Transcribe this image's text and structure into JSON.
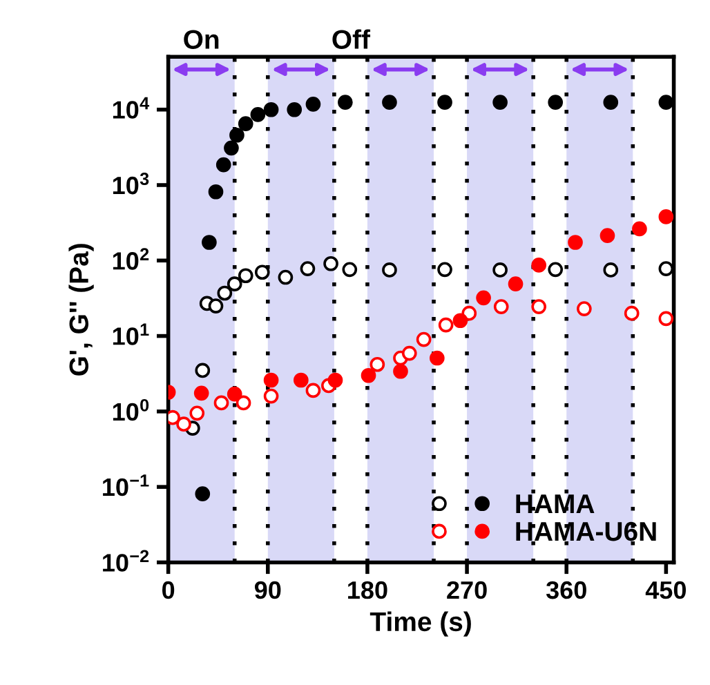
{
  "chart_data": {
    "type": "scatter",
    "xlabel": "Time (s)",
    "ylabel": "G', G'' (Pa)",
    "xlim": [
      0,
      457
    ],
    "xticks": [
      0,
      90,
      180,
      270,
      360,
      450
    ],
    "ylim": [
      0.01,
      50000
    ],
    "log": "y",
    "yticks": [
      {
        "value": 0.01,
        "label": "10$^{−2}$"
      },
      {
        "value": 0.1,
        "label": "10$^{−1}$"
      },
      {
        "value": 1,
        "label": "10$^{0}$"
      },
      {
        "value": 10,
        "label": "10$^{1}$"
      },
      {
        "value": 100,
        "label": "10$^{2}$"
      },
      {
        "value": 1000,
        "label": "10$^{3}$"
      },
      {
        "value": 10000,
        "label": "10$^{4}$"
      }
    ],
    "grid": false,
    "legend": "bottom right",
    "marker": "circle",
    "annotations": [
      "On",
      "Off"
    ],
    "bands": [
      {
        "axis": "x",
        "from": 0,
        "to": 60,
        "color": "#d9d9f7"
      },
      {
        "axis": "x",
        "from": 90,
        "to": 150,
        "color": "#d9d9f7"
      },
      {
        "axis": "x",
        "from": 180,
        "to": 240,
        "color": "#d9d9f7"
      },
      {
        "axis": "x",
        "from": 270,
        "to": 330,
        "color": "#d9d9f7"
      },
      {
        "axis": "x",
        "from": 360,
        "to": 420,
        "color": "#d9d9f7"
      }
    ],
    "ref_lines": [
      {
        "axis": "x",
        "value": 60,
        "color": "#000000",
        "line_style": "dotted"
      },
      {
        "axis": "x",
        "value": 90,
        "color": "#000000",
        "line_style": "dotted"
      },
      {
        "axis": "x",
        "value": 150,
        "color": "#000000",
        "line_style": "dotted"
      },
      {
        "axis": "x",
        "value": 180,
        "color": "#000000",
        "line_style": "dotted"
      },
      {
        "axis": "x",
        "value": 240,
        "color": "#000000",
        "line_style": "dotted"
      },
      {
        "axis": "x",
        "value": 270,
        "color": "#000000",
        "line_style": "dotted"
      },
      {
        "axis": "x",
        "value": 330,
        "color": "#000000",
        "line_style": "dotted"
      },
      {
        "axis": "x",
        "value": 360,
        "color": "#000000",
        "line_style": "dotted"
      },
      {
        "axis": "x",
        "value": 420,
        "color": "#000000",
        "line_style": "dotted"
      }
    ],
    "series": [
      {
        "color": "#000000",
        "x": [
          22,
          31,
          35,
          43,
          51,
          60,
          70,
          85,
          106,
          126,
          147,
          164,
          200,
          250,
          300,
          350,
          400,
          450
        ],
        "values": [
          0.6,
          3.5,
          27,
          25,
          37,
          49,
          63,
          70,
          60,
          78,
          91,
          76,
          75,
          76,
          75,
          76,
          75,
          78
        ]
      },
      {
        "name": "HAMA",
        "color": "#000000",
        "x": [
          31,
          37,
          43,
          50,
          57,
          62,
          70,
          81,
          93,
          114,
          131,
          160,
          200,
          250,
          300,
          350,
          400,
          450
        ],
        "values": [
          0.081,
          174,
          815,
          1860,
          3100,
          4580,
          6500,
          8600,
          10000,
          10000,
          11800,
          12500,
          12500,
          12500,
          12500,
          12500,
          12500,
          12500
        ]
      },
      {
        "color": "#ff0000",
        "x": [
          4,
          14,
          26,
          48,
          68,
          93,
          131,
          145,
          189,
          210,
          218,
          231,
          251,
          272,
          301,
          335,
          376,
          419,
          450
        ],
        "values": [
          0.83,
          0.68,
          0.95,
          1.3,
          1.3,
          1.6,
          1.9,
          2.2,
          4.2,
          5.1,
          5.9,
          9,
          14,
          20,
          24.5,
          24.5,
          23,
          20,
          17
        ]
      },
      {
        "name": "HAMA-U6N",
        "color": "#ff0000",
        "x": [
          0,
          30,
          60,
          93,
          120,
          151,
          181,
          210,
          243,
          264,
          285,
          314,
          335,
          368,
          397,
          426,
          450
        ],
        "values": [
          1.8,
          1.75,
          1.7,
          2.6,
          2.6,
          2.6,
          3.0,
          3.4,
          5.1,
          16,
          32,
          49,
          87,
          174,
          214,
          263,
          380
        ]
      }
    ]
  }
}
